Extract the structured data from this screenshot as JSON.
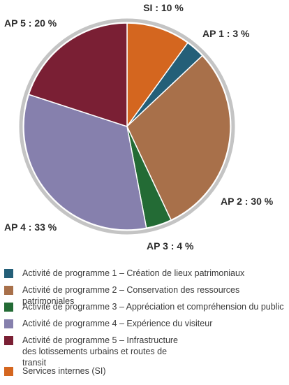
{
  "chart_data": {
    "type": "pie",
    "title": "",
    "slices": [
      {
        "code": "SI",
        "value": 10,
        "label": "SI : 10 %",
        "color": "#d4661f"
      },
      {
        "code": "AP 1",
        "value": 3,
        "label": "AP 1 : 3 %",
        "color": "#245f78"
      },
      {
        "code": "AP 2",
        "value": 30,
        "label": "AP 2 : 30 %",
        "color": "#a8704a"
      },
      {
        "code": "AP 3",
        "value": 4,
        "label": "AP 3 : 4 %",
        "color": "#236b35"
      },
      {
        "code": "AP 4",
        "value": 33,
        "label": "AP 4 : 33 %",
        "color": "#8680ad"
      },
      {
        "code": "AP 5",
        "value": 20,
        "label": "AP 5 : 20 %",
        "color": "#7a1f34"
      }
    ],
    "legend_position": "bottom"
  },
  "ring_color": "#c4c4c4",
  "legend": [
    {
      "text": "Activité de programme 1 – Création de lieux patrimoniaux",
      "color": "#245f78"
    },
    {
      "text": "Activité de programme 2 – Conservation des ressources patrimoniales",
      "color": "#a8704a"
    },
    {
      "text": "Activité de programme 3 – Appréciation et compréhension du public",
      "color": "#236b35"
    },
    {
      "text": "Activité de programme 4 – Expérience du visiteur",
      "color": "#8680ad"
    },
    {
      "text": "Activité de programme 5 – Infrastructure des lotissements urbains et routes de transit",
      "color": "#7a1f34"
    },
    {
      "text": "Services internes (SI)",
      "color": "#d4661f"
    }
  ]
}
